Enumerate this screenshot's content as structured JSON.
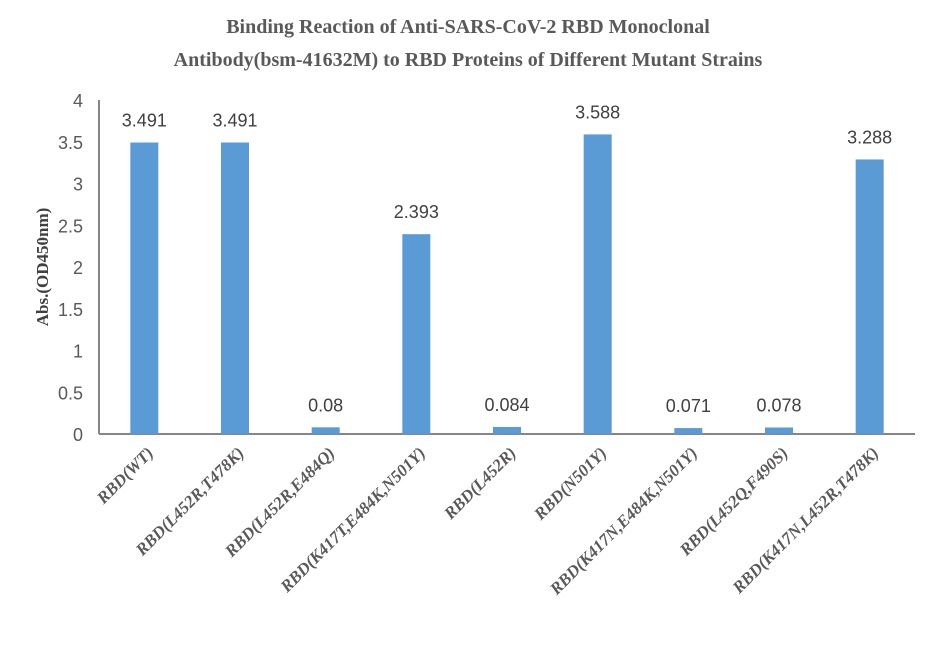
{
  "chart_data": {
    "type": "bar",
    "title": [
      "Binding Reaction of Anti-SARS-CoV-2 RBD Monoclonal",
      "Antibody(bsm-41632M) to RBD Proteins of Different Mutant Strains"
    ],
    "xlabel": "",
    "ylabel": "Abs.(OD450nm)",
    "ylim": [
      0,
      4
    ],
    "yticks": [
      "0",
      "0.5",
      "1",
      "1.5",
      "2",
      "2.5",
      "3",
      "3.5",
      "4"
    ],
    "grid": false,
    "bar_color": "#5b9bd5",
    "categories": [
      "RBD(WT)",
      "RBD(L452R,T478K)",
      "RBD(L452R,E484Q)",
      "RBD(K417T,E484K,N501Y)",
      "RBD(L452R)",
      "RBD(N501Y)",
      "RBD(K417N,E484K,N501Y)",
      "RBD(L452Q,F490S)",
      "RBD(K417N,L452R,T478K)"
    ],
    "values": [
      3.491,
      3.491,
      0.08,
      2.393,
      0.084,
      3.588,
      0.071,
      0.078,
      3.288
    ],
    "data_labels": [
      "3.491",
      "3.491",
      "0.08",
      "2.393",
      "0.084",
      "3.588",
      "0.071",
      "0.078",
      "3.288"
    ]
  }
}
